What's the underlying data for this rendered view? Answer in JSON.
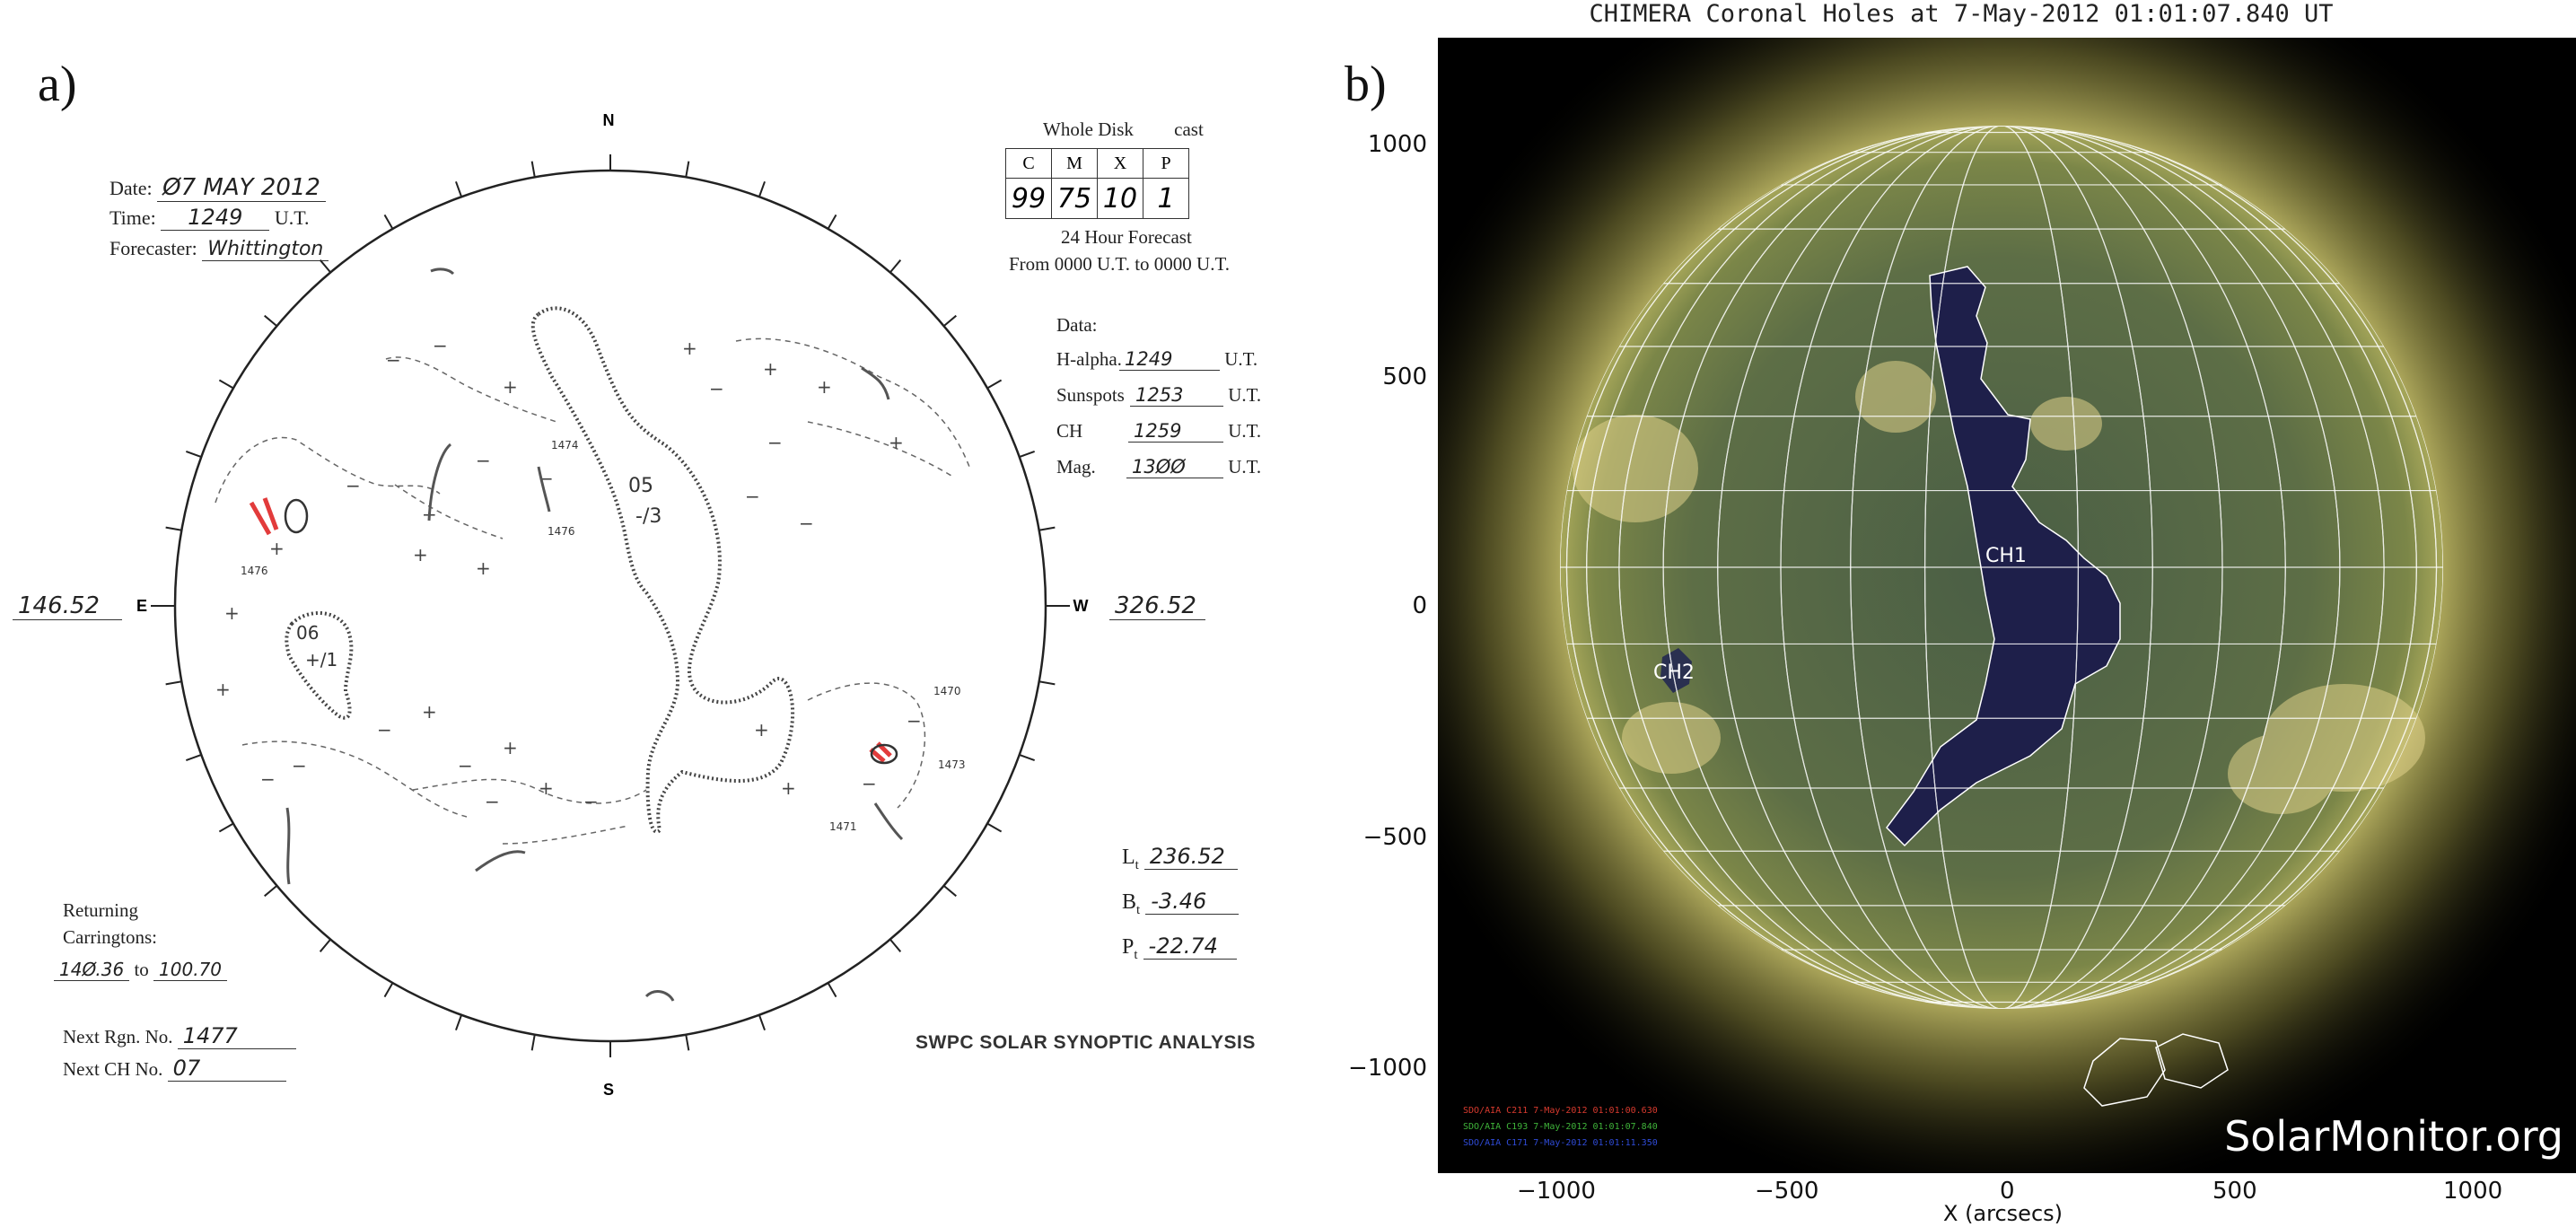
{
  "figure": {
    "label_a": "a)",
    "label_b": "b)"
  },
  "panel_a": {
    "date_label": "Date:",
    "date_value": "Ø7 MAY 2012",
    "time_label": "Time:",
    "time_value": "1249",
    "time_unit": "U.T.",
    "forecaster_label": "Forecaster:",
    "forecaster_value": "Whittington",
    "forecast_title_left": "Whole Disk",
    "forecast_title_right": "cast",
    "forecast_cols": [
      "C",
      "M",
      "X",
      "P"
    ],
    "forecast_vals": [
      "99",
      "75",
      "10",
      "1"
    ],
    "forecast_sub1": "24 Hour Forecast",
    "forecast_sub2": "From 0000 U.T. to 0000 U.T.",
    "data_label": "Data:",
    "data_rows": [
      {
        "label": "H-alpha.",
        "value": "1249",
        "unit": "U.T."
      },
      {
        "label": "Sunspots",
        "value": "1253",
        "unit": "U.T."
      },
      {
        "label": "CH",
        "value": "1259",
        "unit": "U.T."
      },
      {
        "label": "Mag.",
        "value": "13ØØ",
        "unit": "U.T."
      }
    ],
    "compass": {
      "n": "N",
      "s": "S",
      "e": "E",
      "w": "W"
    },
    "east_lon": "146.52",
    "west_lon": "326.52",
    "lt_label": "L",
    "lt_sub": "t",
    "lt_value": "236.52",
    "bt_label": "B",
    "bt_sub": "t",
    "bt_value": "-3.46",
    "pt_label": "P",
    "pt_sub": "t",
    "pt_value": "-22.74",
    "returning_label_1": "Returning",
    "returning_label_2": "Carringtons:",
    "returning_from": "14Ø.36",
    "returning_to_word": "to",
    "returning_to": "100.70",
    "next_rgn_label": "Next Rgn. No.",
    "next_rgn_value": "1477",
    "next_ch_label": "Next CH No.",
    "next_ch_value": "07",
    "swpc_title": "SWPC SOLAR SYNOPTIC ANALYSIS",
    "sketch_labels": {
      "ch05": "05",
      "ch05_sign": "-/3",
      "ch06": "06",
      "ch06_sign": "+/1",
      "r1474": "1474",
      "r1476a": "1476",
      "r1476b": "1476",
      "r1470": "1470",
      "r1473": "1473",
      "r1471": "1471"
    }
  },
  "panel_b": {
    "title": "CHIMERA Coronal Holes at  7-May-2012 01:01:07.840 UT",
    "y_ticks": [
      "1000",
      "500",
      "0",
      "−500",
      "−1000"
    ],
    "x_ticks": [
      "−1000",
      "−500",
      "0",
      "500",
      "1000"
    ],
    "xlabel": "X (arcsecs)",
    "ch_labels": [
      "CH1",
      "CH2"
    ],
    "legend": [
      {
        "text": "SDO/AIA C211 7-May-2012 01:01:00.630",
        "color": "#d83a2e"
      },
      {
        "text": "SDO/AIA C193 7-May-2012 01:01:07.840",
        "color": "#3fb43a"
      },
      {
        "text": "SDO/AIA C171 7-May-2012 01:01:11.350",
        "color": "#2f4bd8"
      }
    ],
    "watermark": "SolarMonitor.org"
  }
}
